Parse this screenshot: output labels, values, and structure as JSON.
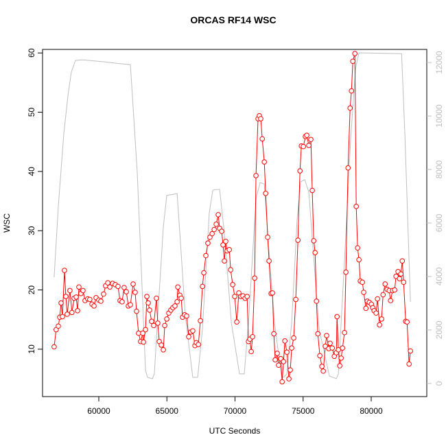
{
  "chart_data": {
    "type": "line",
    "title": "ORCAS RF14 WSC",
    "x_label": "UTC Seconds",
    "y_label": "WSC",
    "xlim": [
      55870,
      84080
    ],
    "xticks": [
      60000,
      65000,
      70000,
      75000,
      80000
    ],
    "ylim": [
      2.0,
      60.6
    ],
    "yticks": [
      10,
      20,
      30,
      40,
      50,
      60
    ],
    "y2lim": [
      -490,
      12490
    ],
    "y2ticks": [
      0,
      2000,
      4000,
      6000,
      8000,
      10000,
      12000
    ],
    "x": [
      56720,
      56870,
      57030,
      57130,
      57230,
      57330,
      57480,
      57580,
      57680,
      57880,
      58030,
      58190,
      58340,
      58440,
      58540,
      58690,
      58840,
      58990,
      59190,
      59340,
      59500,
      59650,
      59800,
      60000,
      60150,
      60350,
      60500,
      60660,
      60810,
      61010,
      61210,
      61410,
      61560,
      61710,
      61860,
      62020,
      62170,
      62320,
      62520,
      62670,
      62770,
      62920,
      63070,
      63230,
      63280,
      63430,
      63530,
      63630,
      63730,
      63880,
      64030,
      64230,
      64330,
      64440,
      64590,
      64740,
      64840,
      64990,
      65140,
      65290,
      65440,
      65590,
      65750,
      65800,
      65950,
      66050,
      66150,
      66300,
      66450,
      66600,
      66750,
      66900,
      67060,
      67160,
      67310,
      67460,
      67610,
      67710,
      67860,
      68010,
      68160,
      68320,
      68470,
      68620,
      68770,
      68870,
      69020,
      69120,
      69220,
      69320,
      69420,
      69580,
      69680,
      69830,
      69980,
      70130,
      70280,
      70430,
      70580,
      70740,
      70890,
      70990,
      71090,
      71190,
      71290,
      71440,
      71540,
      71690,
      71790,
      71890,
      72000,
      72150,
      72250,
      72400,
      72500,
      72650,
      72750,
      72850,
      72950,
      73100,
      73200,
      73360,
      73460,
      73560,
      73660,
      73810,
      73960,
      74060,
      74160,
      74310,
      74460,
      74620,
      74770,
      74870,
      75020,
      75170,
      75270,
      75420,
      75570,
      75670,
      75780,
      75880,
      75980,
      76080,
      76230,
      76380,
      76480,
      76630,
      76730,
      76880,
      76980,
      77140,
      77290,
      77440,
      77490,
      77590,
      77690,
      77790,
      77890,
      78040,
      78140,
      78300,
      78450,
      78550,
      78650,
      78800,
      78900,
      79000,
      79100,
      79200,
      79350,
      79450,
      79610,
      79710,
      79860,
      80010,
      80110,
      80210,
      80360,
      80460,
      80610,
      80760,
      80870,
      81020,
      81170,
      81320,
      81420,
      81570,
      81720,
      81820,
      81970,
      82080,
      82180,
      82280,
      82380,
      82530,
      82630,
      82780,
      82880
    ],
    "series": [
      {
        "color": "#bebebe",
        "axis": "y2",
        "x": [
          56720,
          57030,
          57430,
          57730,
          57980,
          58290,
          58790,
          60300,
          61310,
          62320,
          62820,
          63180,
          63430,
          63580,
          63930,
          64080,
          64330,
          64740,
          64990,
          65750,
          65950,
          66350,
          66900,
          67260,
          67610,
          68110,
          68370,
          68870,
          69220,
          69730,
          70330,
          70680,
          70990,
          71540,
          71840,
          72150,
          72400,
          72900,
          73410,
          73560,
          73810,
          74160,
          74560,
          74820,
          75120,
          75420,
          75720,
          76180,
          76930,
          77440,
          77590,
          78090,
          78500,
          78850,
          79100,
          79450,
          82230,
          82480,
          82880
        ],
        "values": [
          3970,
          6640,
          9330,
          10740,
          11640,
          12080,
          12100,
          12030,
          11970,
          11920,
          7920,
          3560,
          490,
          230,
          180,
          360,
          2540,
          5870,
          7030,
          7100,
          5620,
          2540,
          230,
          230,
          2030,
          6380,
          7230,
          7260,
          5620,
          2280,
          360,
          360,
          2280,
          6900,
          7510,
          7460,
          5620,
          2280,
          280,
          230,
          360,
          2280,
          6130,
          7540,
          7620,
          7150,
          5100,
          2030,
          280,
          180,
          360,
          5100,
          9210,
          11770,
          12360,
          12360,
          12330,
          9210,
          3050
        ]
      },
      {
        "color": "#ff0000",
        "marker": "circle",
        "values": [
          10.4,
          13.3,
          13.9,
          15.4,
          17.8,
          15.5,
          23.3,
          18.9,
          15.9,
          19.9,
          16.2,
          18.6,
          18.8,
          16.5,
          20.5,
          19.4,
          19.9,
          18.2,
          18.5,
          18.4,
          17.6,
          17.3,
          18.7,
          18.3,
          18.1,
          19.3,
          20.7,
          21.2,
          20.5,
          21.1,
          20.9,
          20.6,
          18.2,
          18.0,
          20.4,
          19.7,
          17.3,
          17.5,
          21.0,
          19.6,
          16.4,
          12.7,
          11.3,
          12.7,
          11.2,
          13.3,
          18.9,
          17.8,
          16.6,
          14.7,
          14.0,
          18.6,
          14.4,
          11.3,
          10.7,
          9.9,
          14.0,
          15.1,
          16.1,
          16.6,
          17.0,
          17.3,
          18.0,
          20.5,
          19.1,
          18.6,
          15.4,
          15.8,
          15.6,
          12.1,
          12.9,
          13.1,
          10.6,
          11.1,
          10.8,
          14.8,
          20.6,
          22.9,
          25.8,
          27.9,
          28.9,
          29.5,
          30.2,
          31.1,
          32.7,
          30.4,
          29.9,
          27.6,
          24.9,
          28.2,
          26.6,
          26.8,
          23.4,
          20.9,
          18.9,
          14.6,
          19.5,
          18.9,
          19.0,
          18.6,
          18.9,
          11.3,
          11.7,
          9.6,
          12.1,
          22.0,
          39.3,
          48.9,
          49.4,
          48.9,
          45.5,
          41.6,
          36.3,
          28.9,
          24.9,
          19.4,
          19.5,
          12.6,
          8.2,
          9.3,
          7.3,
          8.4,
          4.5,
          7.9,
          11.4,
          9.5,
          5.0,
          6.5,
          10.2,
          11.9,
          18.4,
          28.4,
          40.1,
          44.3,
          44.2,
          45.9,
          46.1,
          44.4,
          45.4,
          36.8,
          28.3,
          26.3,
          18.1,
          12.6,
          8.9,
          7.1,
          6.3,
          10.5,
          12.3,
          10.1,
          11.0,
          10.2,
          8.8,
          9.4,
          15.5,
          9.9,
          7.2,
          8.5,
          10.2,
          12.8,
          23.0,
          40.6,
          50.7,
          53.6,
          58.6,
          59.9,
          34.1,
          27.1,
          25.1,
          21.5,
          21.3,
          19.6,
          16.9,
          18.1,
          17.9,
          17.6,
          17.0,
          16.5,
          16.1,
          18.5,
          14.1,
          15.1,
          19.2,
          21.0,
          20.1,
          19.9,
          18.2,
          19.9,
          20.0,
          22.3,
          23.1,
          21.9,
          22.7,
          24.9,
          21.3,
          14.7,
          14.6,
          7.5,
          9.7
        ]
      }
    ]
  }
}
